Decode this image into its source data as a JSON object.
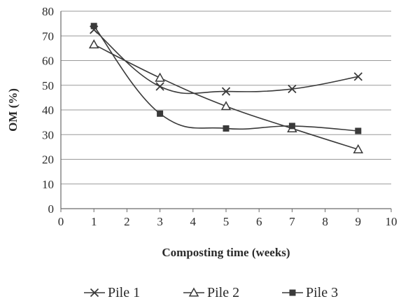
{
  "chart_data": {
    "type": "line",
    "xlabel": "Composting time (weeks)",
    "ylabel": "OM (%)",
    "xlim": [
      0,
      10
    ],
    "ylim": [
      0,
      80
    ],
    "xticks": [
      0,
      1,
      2,
      3,
      4,
      5,
      6,
      7,
      8,
      9,
      10
    ],
    "yticks": [
      0,
      10,
      20,
      30,
      40,
      50,
      60,
      70,
      80
    ],
    "grid": "horizontal",
    "legend_position": "bottom",
    "smoothed": true,
    "line_color": "#3a3a3a",
    "series": [
      {
        "name": "Pile 1",
        "marker": "x",
        "x": [
          1,
          3,
          5,
          7,
          9
        ],
        "y": [
          72.5,
          49.5,
          47.5,
          48.5,
          53.5
        ]
      },
      {
        "name": "Pile 2",
        "marker": "triangle",
        "x": [
          1,
          3,
          5,
          7,
          9
        ],
        "y": [
          66.5,
          53,
          41.5,
          32.5,
          24
        ]
      },
      {
        "name": "Pile 3",
        "marker": "square",
        "x": [
          1,
          3,
          5,
          7,
          9
        ],
        "y": [
          74,
          38.5,
          32.5,
          33.5,
          31.5
        ]
      }
    ]
  }
}
